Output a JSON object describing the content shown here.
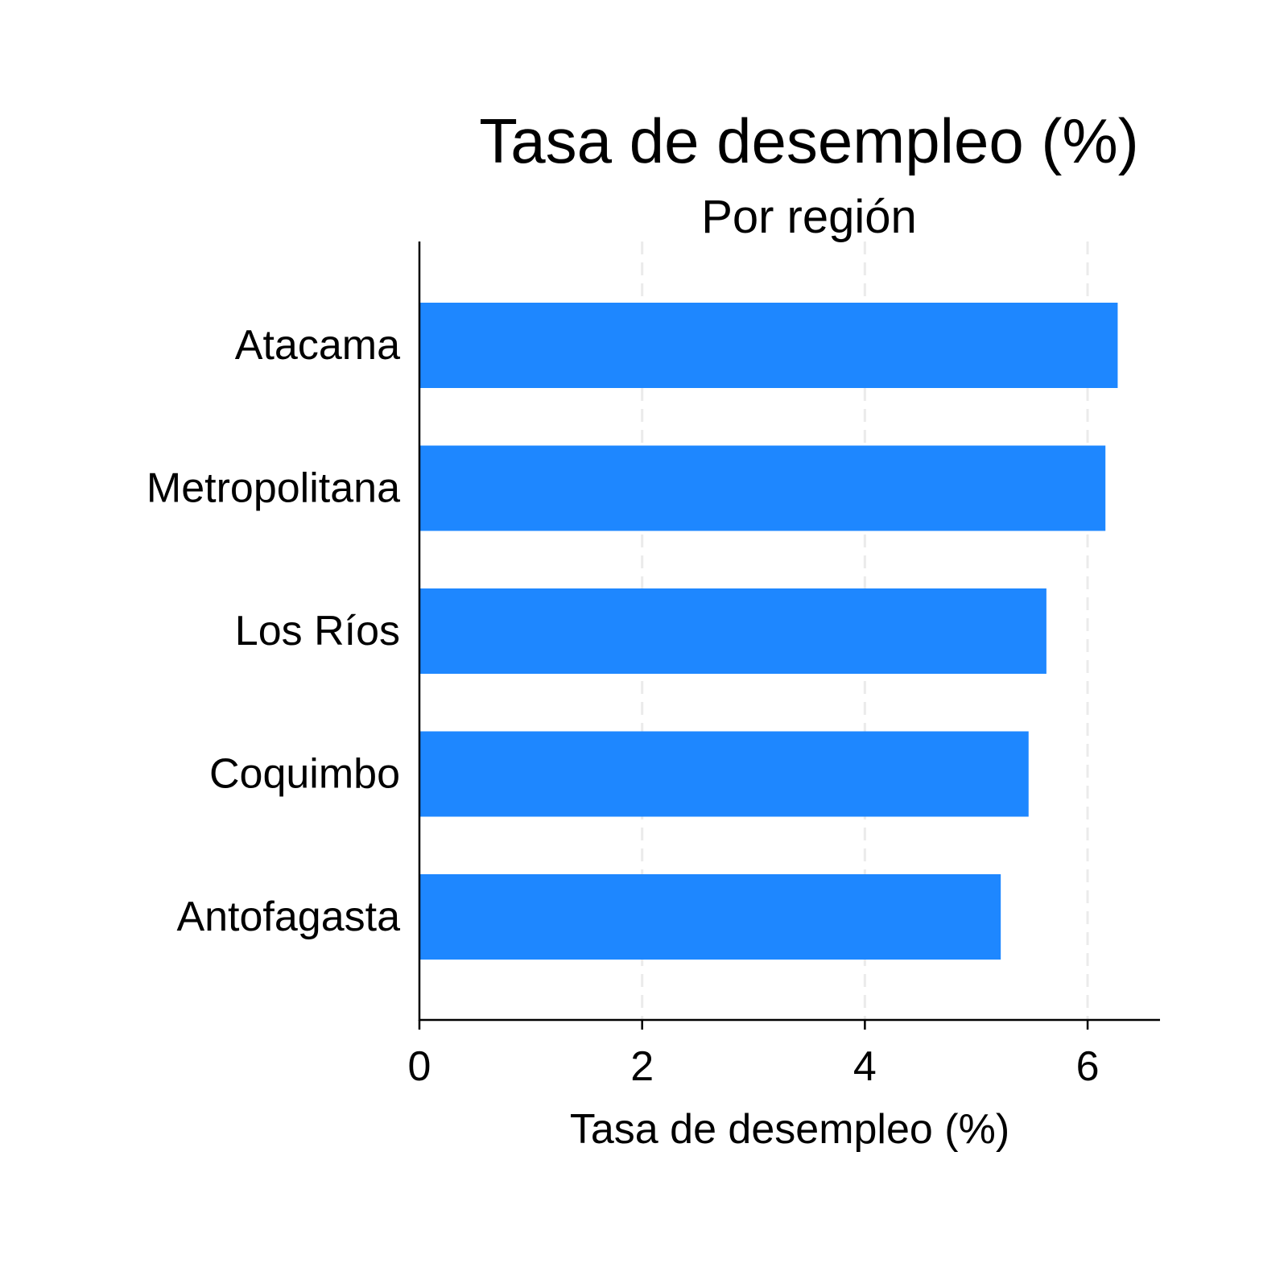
{
  "chart_data": {
    "type": "bar",
    "orientation": "horizontal",
    "title": "Tasa de desempleo (%)",
    "subtitle": "Por región",
    "xlabel": "Tasa de desempleo (%)",
    "ylabel": "",
    "categories": [
      "Atacama",
      "Metropolitana",
      "Los Ríos",
      "Coquimbo",
      "Antofagasta"
    ],
    "values": [
      6.27,
      6.16,
      5.63,
      5.47,
      5.22
    ],
    "xlim": [
      0,
      6.65
    ],
    "xticks": [
      "0",
      "2",
      "4",
      "6"
    ],
    "grid": "x, dashed",
    "legend": "none",
    "bar_color": "#1e87ff",
    "grid_color": "#ebebeb",
    "axis_color": "#000000"
  }
}
